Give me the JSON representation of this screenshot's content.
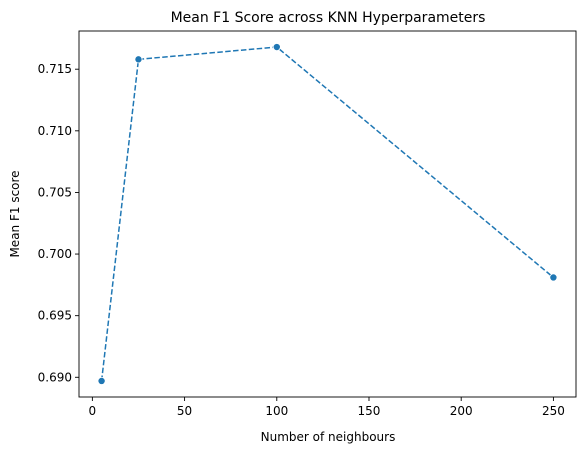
{
  "chart_data": {
    "type": "line",
    "title": "Mean F1 Score across KNN Hyperparameters",
    "xlabel": "Number of neighbours",
    "ylabel": "Mean F1 score",
    "x": [
      5,
      25,
      100,
      250
    ],
    "series": [
      {
        "values": [
          0.6897,
          0.7158,
          0.7168,
          0.6981
        ],
        "color": "#1f77b4",
        "line_style": "dashed",
        "marker": "circle"
      }
    ],
    "xlim": [
      -7.25,
      262.25
    ],
    "ylim": [
      0.6884,
      0.7181
    ],
    "xticks": [
      0,
      50,
      100,
      150,
      200,
      250
    ],
    "xtick_labels": [
      "0",
      "50",
      "100",
      "150",
      "200",
      "250"
    ],
    "yticks": [
      0.69,
      0.695,
      0.7,
      0.705,
      0.71,
      0.715
    ],
    "ytick_labels": [
      "0.690",
      "0.695",
      "0.700",
      "0.705",
      "0.710",
      "0.715"
    ],
    "grid": false,
    "legend": false
  }
}
